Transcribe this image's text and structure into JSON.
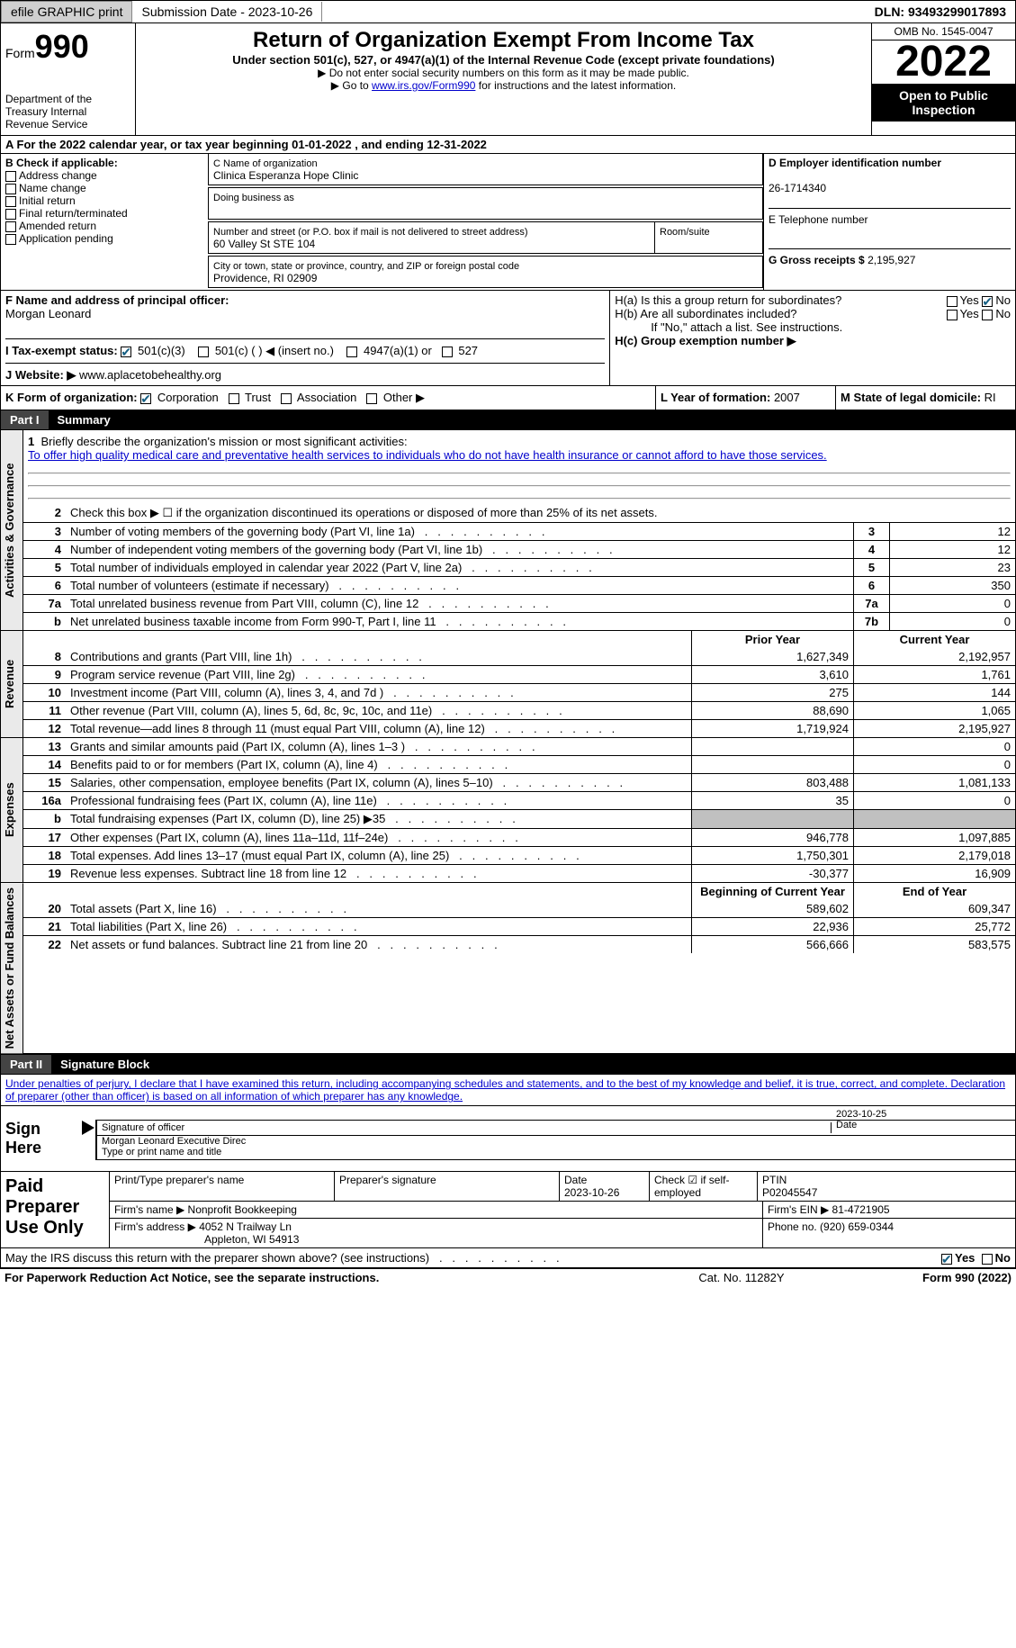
{
  "topbar": {
    "efile": "efile GRAPHIC print",
    "subdate_lbl": "Submission Date - 2023-10-26",
    "dln": "DLN: 93493299017893"
  },
  "header": {
    "form_prefix": "Form",
    "form_num": "990",
    "dept": "Department of the Treasury Internal Revenue Service",
    "title": "Return of Organization Exempt From Income Tax",
    "subtitle": "Under section 501(c), 527, or 4947(a)(1) of the Internal Revenue Code (except private foundations)",
    "note1": "▶ Do not enter social security numbers on this form as it may be made public.",
    "note2_pre": "▶ Go to ",
    "note2_link": "www.irs.gov/Form990",
    "note2_post": " for instructions and the latest information.",
    "omb": "OMB No. 1545-0047",
    "year": "2022",
    "open": "Open to Public Inspection"
  },
  "A": {
    "text": "A For the 2022 calendar year, or tax year beginning 01-01-2022    , and ending 12-31-2022"
  },
  "B": {
    "label": "B Check if applicable:",
    "opts": [
      "Address change",
      "Name change",
      "Initial return",
      "Final return/terminated",
      "Amended return",
      "Application pending"
    ]
  },
  "C": {
    "name_lbl": "C Name of organization",
    "name": "Clinica Esperanza Hope Clinic",
    "dba_lbl": "Doing business as",
    "addr_lbl": "Number and street (or P.O. box if mail is not delivered to street address)",
    "room_lbl": "Room/suite",
    "addr": "60 Valley St STE 104",
    "city_lbl": "City or town, state or province, country, and ZIP or foreign postal code",
    "city": "Providence, RI  02909"
  },
  "D": {
    "lbl": "D Employer identification number",
    "val": "26-1714340"
  },
  "E": {
    "lbl": "E Telephone number",
    "val": ""
  },
  "G": {
    "lbl": "G Gross receipts $",
    "val": "2,195,927"
  },
  "F": {
    "lbl": "F  Name and address of principal officer:",
    "name": "Morgan Leonard"
  },
  "H": {
    "a": "H(a)  Is this a group return for subordinates?",
    "b": "H(b)  Are all subordinates included?",
    "b_note": "If \"No,\" attach a list. See instructions.",
    "c": "H(c)  Group exemption number ▶"
  },
  "I": {
    "lbl": "I   Tax-exempt status:",
    "opts": [
      "501(c)(3)",
      "501(c) (  ) ◀ (insert no.)",
      "4947(a)(1) or",
      "527"
    ]
  },
  "J": {
    "lbl": "J   Website: ▶",
    "val": "  www.aplacetobehealthy.org"
  },
  "K": {
    "lbl": "K Form of organization:",
    "opts": [
      "Corporation",
      "Trust",
      "Association",
      "Other ▶"
    ]
  },
  "L": {
    "lbl": "L Year of formation:",
    "val": "2007"
  },
  "M": {
    "lbl": "M State of legal domicile:",
    "val": "RI"
  },
  "part1": {
    "lbl": "Part I",
    "title": "Summary"
  },
  "mission": {
    "num": "1",
    "lbl": "Briefly describe the organization's mission or most significant activities:",
    "text": "To offer high quality medical care and preventative health services to individuals who do not have health insurance or cannot afford to have those services."
  },
  "lines_gov": [
    {
      "n": "2",
      "d": "Check this box ▶ ☐  if the organization discontinued its operations or disposed of more than 25% of its net assets."
    },
    {
      "n": "3",
      "d": "Number of voting members of the governing body (Part VI, line 1a)",
      "box": "3",
      "v": "12"
    },
    {
      "n": "4",
      "d": "Number of independent voting members of the governing body (Part VI, line 1b)",
      "box": "4",
      "v": "12"
    },
    {
      "n": "5",
      "d": "Total number of individuals employed in calendar year 2022 (Part V, line 2a)",
      "box": "5",
      "v": "23"
    },
    {
      "n": "6",
      "d": "Total number of volunteers (estimate if necessary)",
      "box": "6",
      "v": "350"
    },
    {
      "n": "7a",
      "d": "Total unrelated business revenue from Part VIII, column (C), line 12",
      "box": "7a",
      "v": "0"
    },
    {
      "n": "b",
      "d": "Net unrelated business taxable income from Form 990-T, Part I, line 11",
      "box": "7b",
      "v": "0"
    }
  ],
  "col_hdr": {
    "prior": "Prior Year",
    "current": "Current Year",
    "beg": "Beginning of Current Year",
    "end": "End of Year"
  },
  "lines_rev": [
    {
      "n": "8",
      "d": "Contributions and grants (Part VIII, line 1h)",
      "p": "1,627,349",
      "c": "2,192,957"
    },
    {
      "n": "9",
      "d": "Program service revenue (Part VIII, line 2g)",
      "p": "3,610",
      "c": "1,761"
    },
    {
      "n": "10",
      "d": "Investment income (Part VIII, column (A), lines 3, 4, and 7d )",
      "p": "275",
      "c": "144"
    },
    {
      "n": "11",
      "d": "Other revenue (Part VIII, column (A), lines 5, 6d, 8c, 9c, 10c, and 11e)",
      "p": "88,690",
      "c": "1,065"
    },
    {
      "n": "12",
      "d": "Total revenue—add lines 8 through 11 (must equal Part VIII, column (A), line 12)",
      "p": "1,719,924",
      "c": "2,195,927"
    }
  ],
  "lines_exp": [
    {
      "n": "13",
      "d": "Grants and similar amounts paid (Part IX, column (A), lines 1–3 )",
      "p": "",
      "c": "0"
    },
    {
      "n": "14",
      "d": "Benefits paid to or for members (Part IX, column (A), line 4)",
      "p": "",
      "c": "0"
    },
    {
      "n": "15",
      "d": "Salaries, other compensation, employee benefits (Part IX, column (A), lines 5–10)",
      "p": "803,488",
      "c": "1,081,133"
    },
    {
      "n": "16a",
      "d": "Professional fundraising fees (Part IX, column (A), line 11e)",
      "p": "35",
      "c": "0"
    },
    {
      "n": "b",
      "d": "Total fundraising expenses (Part IX, column (D), line 25) ▶35",
      "shaded": true
    },
    {
      "n": "17",
      "d": "Other expenses (Part IX, column (A), lines 11a–11d, 11f–24e)",
      "p": "946,778",
      "c": "1,097,885"
    },
    {
      "n": "18",
      "d": "Total expenses. Add lines 13–17 (must equal Part IX, column (A), line 25)",
      "p": "1,750,301",
      "c": "2,179,018"
    },
    {
      "n": "19",
      "d": "Revenue less expenses. Subtract line 18 from line 12",
      "p": "-30,377",
      "c": "16,909"
    }
  ],
  "lines_net": [
    {
      "n": "20",
      "d": "Total assets (Part X, line 16)",
      "p": "589,602",
      "c": "609,347"
    },
    {
      "n": "21",
      "d": "Total liabilities (Part X, line 26)",
      "p": "22,936",
      "c": "25,772"
    },
    {
      "n": "22",
      "d": "Net assets or fund balances. Subtract line 21 from line 20",
      "p": "566,666",
      "c": "583,575"
    }
  ],
  "vtabs": {
    "gov": "Activities & Governance",
    "rev": "Revenue",
    "exp": "Expenses",
    "net": "Net Assets or Fund Balances"
  },
  "part2": {
    "lbl": "Part II",
    "title": "Signature Block"
  },
  "penalty": "Under penalties of perjury, I declare that I have examined this return, including accompanying schedules and statements, and to the best of my knowledge and belief, it is true, correct, and complete. Declaration of preparer (other than officer) is based on all information of which preparer has any knowledge.",
  "sign": {
    "lbl": "Sign Here",
    "sig_lbl": "Signature of officer",
    "date": "2023-10-25",
    "date_lbl": "Date",
    "name": "Morgan Leonard  Executive Direc",
    "name_lbl": "Type or print name and title"
  },
  "prep": {
    "lbl": "Paid Preparer Use Only",
    "r1": {
      "a": "Print/Type preparer's name",
      "b": "Preparer's signature",
      "c": "Date\n2023-10-26",
      "d": "Check ☑ if self-employed",
      "e": "PTIN\nP02045547"
    },
    "r2": {
      "a": "Firm's name    ▶ Nonprofit Bookkeeping",
      "b": "Firm's EIN ▶ 81-4721905"
    },
    "r3": {
      "a": "Firm's address ▶ 4052 N Trailway Ln",
      "b": "Phone no. (920) 659-0344"
    },
    "r3b": "Appleton, WI  54913"
  },
  "irs_q": "May the IRS discuss this return with the preparer shown above? (see instructions)",
  "footer": {
    "a": "For Paperwork Reduction Act Notice, see the separate instructions.",
    "b": "Cat. No. 11282Y",
    "c": "Form 990 (2022)"
  }
}
